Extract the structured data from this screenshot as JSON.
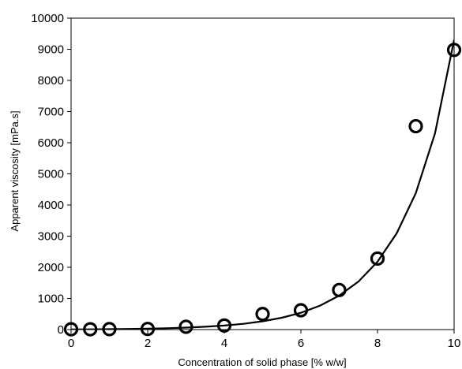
{
  "chart_data": {
    "type": "scatter",
    "title": "",
    "xlabel": "Concentration of solid phase [% w/w]",
    "ylabel": "Apparent viscosity [mPa.s]",
    "xlim": [
      0,
      10
    ],
    "ylim": [
      0,
      10000
    ],
    "x_ticks": [
      0,
      2,
      4,
      6,
      8,
      10
    ],
    "y_ticks": [
      0,
      1000,
      2000,
      3000,
      4000,
      5000,
      6000,
      7000,
      8000,
      9000,
      10000
    ],
    "grid": false,
    "legend": "none",
    "marker": "open-circle",
    "series": [
      {
        "x": [
          0,
          0.5,
          1,
          2,
          3,
          4,
          5,
          6,
          7,
          8,
          9,
          10
        ],
        "y": [
          10,
          10,
          15,
          20,
          90,
          130,
          500,
          620,
          1270,
          2280,
          6530,
          8980
        ]
      }
    ],
    "trend_line": {
      "type": "exponential",
      "points": [
        [
          0,
          5
        ],
        [
          0.5,
          8
        ],
        [
          1,
          13
        ],
        [
          1.5,
          20
        ],
        [
          2,
          30
        ],
        [
          2.5,
          44
        ],
        [
          3,
          63
        ],
        [
          3.5,
          90
        ],
        [
          4,
          130
        ],
        [
          4.5,
          185
        ],
        [
          5,
          265
        ],
        [
          5.5,
          380
        ],
        [
          6,
          540
        ],
        [
          6.5,
          770
        ],
        [
          7,
          1090
        ],
        [
          7.5,
          1540
        ],
        [
          8,
          2180
        ],
        [
          8.5,
          3090
        ],
        [
          9,
          4380
        ],
        [
          9.5,
          6300
        ],
        [
          10,
          9300
        ]
      ]
    },
    "colors": {
      "marker": "#000000",
      "line": "#000000",
      "axis": "#000000"
    }
  }
}
